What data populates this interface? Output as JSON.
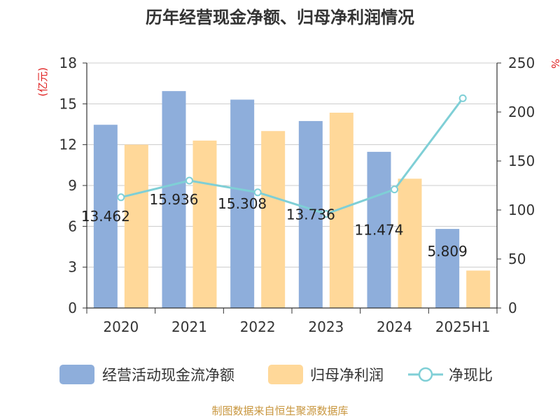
{
  "chart_data": {
    "type": "bar",
    "title": "历年经营现金净额、归母净利润情况",
    "left_axis_unit": "(亿元)",
    "right_axis_unit": "%",
    "categories": [
      "2020",
      "2021",
      "2022",
      "2023",
      "2024",
      "2025H1"
    ],
    "ylim": [
      0,
      18
    ],
    "yticks": [
      0,
      3,
      6,
      9,
      12,
      15,
      18
    ],
    "y2lim": [
      0,
      250
    ],
    "y2ticks": [
      0,
      50,
      100,
      150,
      200,
      250
    ],
    "grid": true,
    "legend_position": "bottom",
    "series": [
      {
        "name": "经营活动现金流净额",
        "kind": "bar",
        "axis": "left",
        "color": "#8eaedb",
        "values": [
          13.462,
          15.936,
          15.308,
          13.736,
          11.474,
          5.809
        ],
        "labels": [
          "13.462",
          "15.936",
          "15.308",
          "13.736",
          "11.474",
          "5.809"
        ]
      },
      {
        "name": "归母净利润",
        "kind": "bar",
        "axis": "left",
        "color": "#ffd899",
        "values": [
          12.0,
          12.3,
          13.0,
          14.35,
          9.5,
          2.75
        ]
      },
      {
        "name": "净现比",
        "kind": "line",
        "axis": "right",
        "color": "#7fcfd6",
        "values": [
          113,
          130,
          118,
          96,
          121,
          214
        ]
      }
    ],
    "source": "制图数据来自恒生聚源数据库",
    "colors": {
      "left_unit": "#e02020",
      "right_unit": "#e02020",
      "source": "#c8963e",
      "axis": "#333333",
      "grid": "#cccccc"
    }
  }
}
